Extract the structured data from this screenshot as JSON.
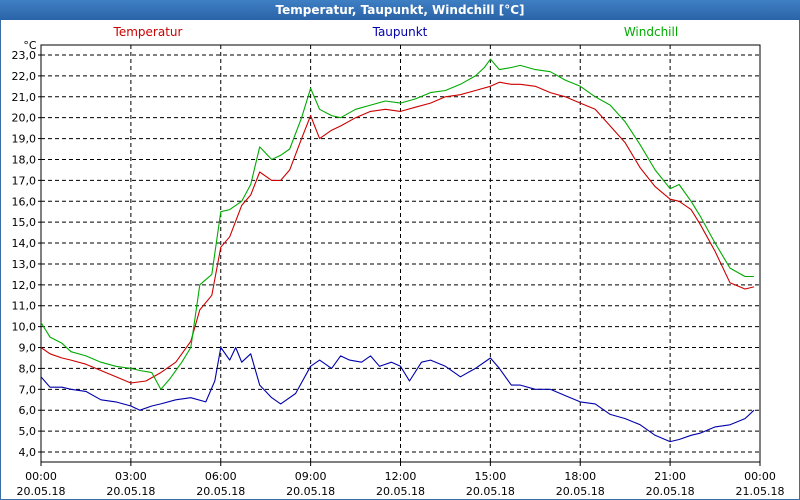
{
  "window": {
    "title": "Temperatur, Taupunkt, Windchill [°C]"
  },
  "colors": {
    "title_bar": "#2f6db5",
    "temperatur": "#cc0000",
    "taupunkt": "#0000aa",
    "windchill": "#00aa00",
    "grid": "#000000"
  },
  "chart_data": {
    "type": "line",
    "title": "Temperatur, Taupunkt, Windchill [°C]",
    "ylabel": "°C",
    "ylim": [
      4.0,
      23.0
    ],
    "xlim_hours": [
      0,
      24
    ],
    "grid": true,
    "y_ticks": [
      "4,0",
      "5,0",
      "6,0",
      "7,0",
      "8,0",
      "9,0",
      "10,0",
      "11,0",
      "12,0",
      "13,0",
      "14,0",
      "15,0",
      "16,0",
      "17,0",
      "18,0",
      "19,0",
      "20,0",
      "21,0",
      "22,0",
      "23,0"
    ],
    "x_ticks": [
      {
        "time": "00:00",
        "date": "20.05.18"
      },
      {
        "time": "03:00",
        "date": "20.05.18"
      },
      {
        "time": "06:00",
        "date": "20.05.18"
      },
      {
        "time": "09:00",
        "date": "20.05.18"
      },
      {
        "time": "12:00",
        "date": "20.05.18"
      },
      {
        "time": "15:00",
        "date": "20.05.18"
      },
      {
        "time": "18:00",
        "date": "20.05.18"
      },
      {
        "time": "21:00",
        "date": "20.05.18"
      },
      {
        "time": "00:00",
        "date": "21.05.18"
      }
    ],
    "series": [
      {
        "name": "Temperatur",
        "x": [
          0,
          0.3,
          0.7,
          1,
          1.5,
          2,
          2.5,
          3,
          3.5,
          4,
          4.5,
          5,
          5.3,
          5.7,
          6,
          6.3,
          6.7,
          7,
          7.3,
          7.7,
          8,
          8.3,
          8.7,
          9,
          9.3,
          9.7,
          10,
          10.5,
          11,
          11.5,
          12,
          12.5,
          13,
          13.5,
          14,
          14.5,
          15,
          15.3,
          15.7,
          16,
          16.5,
          17,
          17.5,
          18,
          18.5,
          19,
          19.5,
          20,
          20.5,
          21,
          21.3,
          21.7,
          22,
          22.5,
          23,
          23.5,
          23.8
        ],
        "values": [
          9.0,
          8.7,
          8.5,
          8.4,
          8.2,
          7.9,
          7.6,
          7.3,
          7.4,
          7.8,
          8.3,
          9.3,
          10.8,
          11.5,
          13.8,
          14.3,
          15.8,
          16.3,
          17.4,
          17.0,
          17.0,
          17.5,
          19.0,
          20.1,
          19.0,
          19.4,
          19.6,
          20.0,
          20.3,
          20.4,
          20.3,
          20.5,
          20.7,
          21.0,
          21.1,
          21.3,
          21.5,
          21.7,
          21.6,
          21.6,
          21.5,
          21.2,
          21.0,
          20.7,
          20.4,
          19.6,
          18.8,
          17.6,
          16.7,
          16.1,
          16.0,
          15.6,
          14.9,
          13.6,
          12.1,
          11.8,
          11.9
        ]
      },
      {
        "name": "Taupunkt",
        "x": [
          0,
          0.3,
          0.7,
          1,
          1.5,
          2,
          2.5,
          3,
          3.3,
          3.7,
          4,
          4.5,
          5,
          5.5,
          5.8,
          6,
          6.3,
          6.5,
          6.7,
          7,
          7.3,
          7.7,
          8,
          8.5,
          9,
          9.3,
          9.7,
          10,
          10.3,
          10.7,
          11,
          11.3,
          11.7,
          12,
          12.3,
          12.7,
          13,
          13.5,
          14,
          14.5,
          15,
          15.3,
          15.7,
          16,
          16.5,
          17,
          17.5,
          18,
          18.5,
          19,
          19.5,
          20,
          20.5,
          21,
          21.3,
          21.7,
          22,
          22.5,
          23,
          23.5,
          23.8
        ],
        "values": [
          7.6,
          7.1,
          7.1,
          7.0,
          6.9,
          6.5,
          6.4,
          6.2,
          6.0,
          6.2,
          6.3,
          6.5,
          6.6,
          6.4,
          7.4,
          9.0,
          8.4,
          9.0,
          8.3,
          8.7,
          7.2,
          6.6,
          6.3,
          6.8,
          8.1,
          8.4,
          8.0,
          8.6,
          8.4,
          8.3,
          8.6,
          8.1,
          8.3,
          8.1,
          7.4,
          8.3,
          8.4,
          8.1,
          7.6,
          8.0,
          8.5,
          8.0,
          7.2,
          7.2,
          7.0,
          7.0,
          6.7,
          6.4,
          6.3,
          5.8,
          5.6,
          5.3,
          4.8,
          4.5,
          4.6,
          4.8,
          4.9,
          5.2,
          5.3,
          5.6,
          6.0
        ]
      },
      {
        "name": "Windchill",
        "x": [
          0,
          0.3,
          0.7,
          1,
          1.5,
          2,
          2.5,
          3,
          3.3,
          3.7,
          4,
          4.3,
          4.7,
          5,
          5.3,
          5.7,
          6,
          6.3,
          6.7,
          7,
          7.3,
          7.7,
          8,
          8.3,
          8.7,
          9,
          9.3,
          9.7,
          10,
          10.5,
          11,
          11.5,
          12,
          12.5,
          13,
          13.5,
          14,
          14.5,
          14.8,
          15,
          15.3,
          15.7,
          16,
          16.5,
          17,
          17.5,
          18,
          18.5,
          19,
          19.5,
          20,
          20.5,
          21,
          21.3,
          21.7,
          22,
          22.5,
          23,
          23.5,
          23.8
        ],
        "values": [
          10.2,
          9.5,
          9.2,
          8.8,
          8.6,
          8.3,
          8.1,
          8.0,
          7.9,
          7.8,
          7.0,
          7.5,
          8.3,
          9.0,
          12.0,
          12.5,
          15.5,
          15.6,
          16.0,
          16.8,
          18.6,
          18.0,
          18.2,
          18.5,
          20.0,
          21.4,
          20.4,
          20.1,
          20.0,
          20.4,
          20.6,
          20.8,
          20.7,
          20.9,
          21.2,
          21.3,
          21.6,
          22.0,
          22.4,
          22.8,
          22.3,
          22.4,
          22.5,
          22.3,
          22.2,
          21.8,
          21.5,
          21.0,
          20.6,
          19.8,
          18.7,
          17.5,
          16.6,
          16.8,
          16.0,
          15.3,
          14.0,
          12.8,
          12.4,
          12.4
        ]
      }
    ]
  }
}
